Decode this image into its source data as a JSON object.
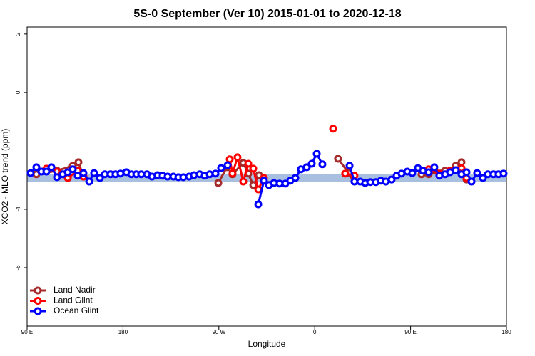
{
  "chart_data": {
    "type": "line",
    "title": "5S-0 September (Ver 10)   2015-01-01 to 2020-12-18",
    "x_label": "Longitude",
    "y_label": "XCO2 - MLO trend (ppm)",
    "xlim": [
      90,
      540
    ],
    "xticks": [
      {
        "value": 90,
        "label": "90 E"
      },
      {
        "value": 180,
        "label": "180"
      },
      {
        "value": 270,
        "label": "90 W"
      },
      {
        "value": 360,
        "label": "0"
      },
      {
        "value": 450,
        "label": "90 E"
      },
      {
        "value": 540,
        "label": "180"
      }
    ],
    "ylim": [
      -8,
      2.24
    ],
    "yticks": [
      2,
      0,
      -4,
      -6
    ],
    "reference_band": [
      -3.07,
      -2.8
    ],
    "reference_band_color": "#a9bfe0",
    "legend": "bottom-left",
    "series": [
      {
        "name": "Land Nadir",
        "color": "#a52a2a",
        "x": [
          98.7,
          118.1,
          132.9,
          138.2,
          142.9,
          null,
          269.5,
          277.5,
          282.8,
          292.9,
          297.6,
          302.3,
          307.6,
          null,
          381.9,
          392.0,
          396.7,
          null,
          460.3,
          467.0,
          472.3,
          482.4,
          492.4,
          497.8,
          502.5
        ],
        "values": [
          -2.8,
          -2.68,
          -2.51,
          -2.39,
          -2.88,
          null,
          -3.1,
          -2.56,
          -2.8,
          -2.41,
          -2.78,
          -3.17,
          -2.83,
          null,
          -2.27,
          -2.76,
          -2.88,
          null,
          -2.8,
          -2.8,
          -2.68,
          -2.68,
          -2.51,
          -2.39,
          -2.98
        ]
      },
      {
        "name": "Land Glint",
        "color": "#ff0000",
        "x": [
          108.1,
          118.1,
          128.2,
          137.5,
          142.9,
          null,
          280.2,
          282.8,
          287.5,
          292.9,
          297.6,
          302.3,
          307.0,
          312.3,
          317.0,
          null,
          377.3,
          null,
          388.6,
          397.3,
          null,
          467.0,
          477.0,
          487.1,
          497.8,
          502.5
        ],
        "values": [
          -2.61,
          -2.71,
          -2.93,
          -2.68,
          -2.88,
          null,
          -2.29,
          -2.78,
          -2.22,
          -3.05,
          -2.44,
          -2.61,
          -3.32,
          -2.93,
          -3.17,
          null,
          -1.24,
          null,
          -2.78,
          -2.85,
          null,
          -2.63,
          -2.78,
          -2.68,
          -2.59,
          -2.93
        ]
      },
      {
        "name": "Ocean Glint",
        "color": "#0000ff",
        "x": [
          93.3,
          98.7,
          103.4,
          108.1,
          112.8,
          118.1,
          123.5,
          128.2,
          132.9,
          137.5,
          142.9,
          148.3,
          152.9,
          158.3,
          163.0,
          168.3,
          173.0,
          177.7,
          183.1,
          187.8,
          192.5,
          197.1,
          202.5,
          207.2,
          212.5,
          217.2,
          221.9,
          227.3,
          232.0,
          236.6,
          242.0,
          246.7,
          252.0,
          256.7,
          261.4,
          266.8,
          272.1,
          278.2,
          null,
          307.0,
          312.3,
          317.0,
          321.7,
          327.0,
          332.4,
          337.1,
          341.8,
          347.1,
          352.5,
          357.2,
          361.9,
          367.2,
          null,
          392.7,
          397.3,
          402.7,
          407.4,
          412.1,
          417.4,
          422.1,
          426.8,
          432.2,
          436.9,
          441.5,
          446.9,
          451.6,
          456.9,
          461.6,
          467.0,
          472.3,
          477.0,
          482.4,
          487.1,
          492.4,
          497.8,
          502.5,
          507.2,
          512.5,
          517.9,
          522.6,
          527.9,
          532.6,
          537.3
        ],
        "values": [
          -2.76,
          -2.56,
          -2.71,
          -2.71,
          -2.56,
          -2.9,
          -2.8,
          -2.73,
          -2.63,
          -2.85,
          -2.76,
          -3.05,
          -2.76,
          -2.93,
          -2.8,
          -2.8,
          -2.8,
          -2.78,
          -2.73,
          -2.8,
          -2.8,
          -2.8,
          -2.8,
          -2.88,
          -2.83,
          -2.85,
          -2.88,
          -2.88,
          -2.9,
          -2.9,
          -2.88,
          -2.83,
          -2.8,
          -2.85,
          -2.8,
          -2.78,
          -2.59,
          -2.49,
          null,
          -3.83,
          -3.02,
          -3.17,
          -3.1,
          -3.12,
          -3.12,
          -3.02,
          -2.93,
          -2.63,
          -2.56,
          -2.44,
          -2.1,
          -2.46,
          null,
          -2.51,
          -3.05,
          -3.05,
          -3.1,
          -3.07,
          -3.07,
          -3.02,
          -3.05,
          -2.98,
          -2.85,
          -2.78,
          -2.71,
          -2.76,
          -2.59,
          -2.68,
          -2.73,
          -2.56,
          -2.85,
          -2.8,
          -2.73,
          -2.66,
          -2.8,
          -2.73,
          -3.05,
          -2.76,
          -2.93,
          -2.8,
          -2.8,
          -2.8,
          -2.78
        ]
      }
    ]
  }
}
